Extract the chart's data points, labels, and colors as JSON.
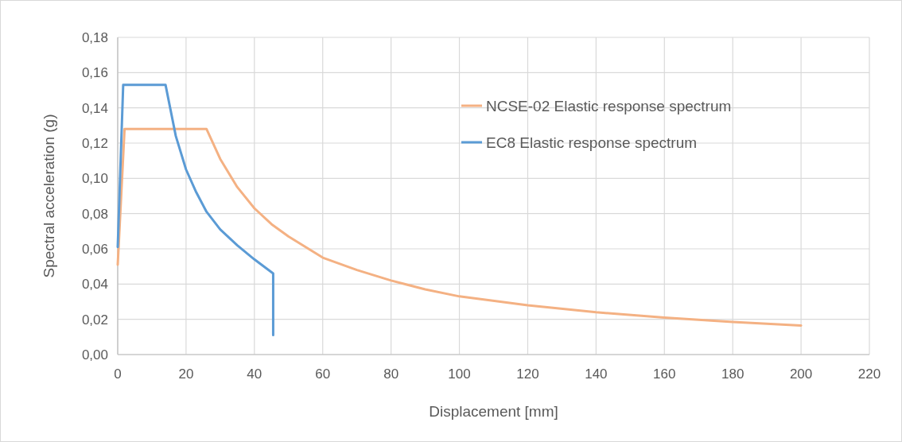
{
  "chart_data": {
    "type": "line",
    "xlabel": "Displacement [mm]",
    "ylabel": "Spectral acceleration (g)",
    "xlim": [
      0,
      220
    ],
    "xticks": [
      0,
      20,
      40,
      60,
      80,
      100,
      120,
      140,
      160,
      180,
      200,
      220
    ],
    "ylim": [
      0,
      0.18
    ],
    "yticks": [
      {
        "value": 0,
        "label": "0,00"
      },
      {
        "value": 0.02,
        "label": "0,02"
      },
      {
        "value": 0.04,
        "label": "0,04"
      },
      {
        "value": 0.06,
        "label": "0,06"
      },
      {
        "value": 0.08,
        "label": "0,08"
      },
      {
        "value": 0.1,
        "label": "0,10"
      },
      {
        "value": 0.12,
        "label": "0,12"
      },
      {
        "value": 0.14,
        "label": "0,14"
      },
      {
        "value": 0.16,
        "label": "0,16"
      },
      {
        "value": 0.18,
        "label": "0,18"
      }
    ],
    "grid": true,
    "legend": "top right",
    "marker": "none",
    "line_style": "solid",
    "series": [
      {
        "name": "NCSE-02 Elastic response spectrum",
        "color": "#f4b183",
        "x": [
          0,
          2,
          26,
          30,
          35,
          40,
          45,
          50,
          60,
          70,
          80,
          90,
          100,
          120,
          140,
          160,
          180,
          200
        ],
        "values": [
          0.051,
          0.128,
          0.128,
          0.111,
          0.095,
          0.083,
          0.074,
          0.067,
          0.055,
          0.048,
          0.042,
          0.037,
          0.033,
          0.028,
          0.024,
          0.021,
          0.0185,
          0.0165
        ]
      },
      {
        "name": "EC8 Elastic response spectrum",
        "color": "#5b9bd5",
        "x": [
          0,
          1.6,
          14,
          17,
          20,
          23,
          26,
          30,
          35,
          40,
          45.5,
          45.5
        ],
        "values": [
          0.061,
          0.153,
          0.153,
          0.124,
          0.105,
          0.092,
          0.081,
          0.071,
          0.062,
          0.054,
          0.046,
          0.011
        ]
      }
    ]
  }
}
